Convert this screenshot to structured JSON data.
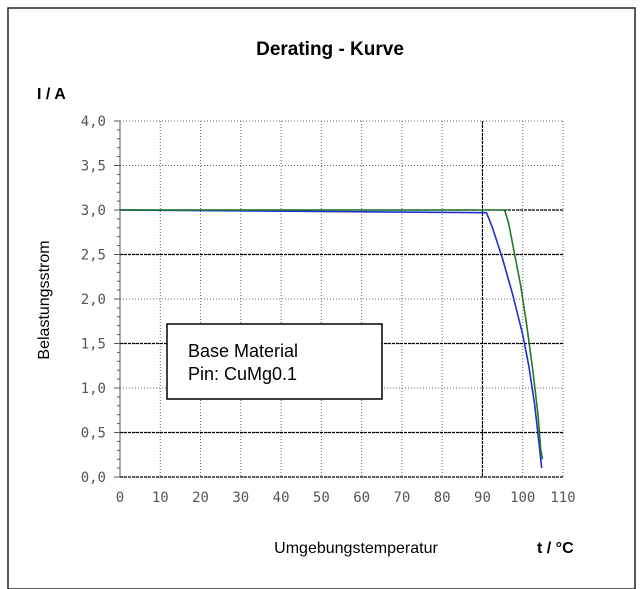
{
  "chart_data": {
    "type": "line",
    "title": "Derating - Kurve",
    "y_unit_label": "I / A",
    "x_unit_label": "t / °C",
    "xlabel": "Umgebungstemperatur",
    "ylabel": "Belastungsstrom",
    "xlim": [
      0,
      110
    ],
    "ylim": [
      0,
      4
    ],
    "x_ticks": [
      "0",
      "10",
      "20",
      "30",
      "40",
      "50",
      "60",
      "70",
      "80",
      "90",
      "100",
      "110"
    ],
    "y_ticks": [
      "0,0",
      "0,5",
      "1,0",
      "1,5",
      "2,0",
      "2,5",
      "3,0",
      "3,5",
      "4,0"
    ],
    "grid": true,
    "annotation": {
      "line1": "Base Material",
      "line2": "Pin: CuMg0.1"
    },
    "series": [
      {
        "color": "#1f2fd0",
        "points": [
          [
            0,
            3.0
          ],
          [
            91,
            2.97
          ],
          [
            92.5,
            2.8
          ],
          [
            95,
            2.45
          ],
          [
            97.5,
            2.05
          ],
          [
            100,
            1.6
          ],
          [
            101.5,
            1.25
          ],
          [
            103,
            0.8
          ],
          [
            104,
            0.4
          ],
          [
            104.7,
            0.1
          ]
        ]
      },
      {
        "color": "#1f7a2a",
        "points": [
          [
            0,
            3.0
          ],
          [
            95.5,
            3.0
          ],
          [
            96.5,
            2.85
          ],
          [
            98,
            2.5
          ],
          [
            99.5,
            2.15
          ],
          [
            101,
            1.7
          ],
          [
            102.5,
            1.2
          ],
          [
            103.8,
            0.7
          ],
          [
            104.5,
            0.3
          ],
          [
            104.9,
            0.2
          ]
        ]
      }
    ]
  }
}
